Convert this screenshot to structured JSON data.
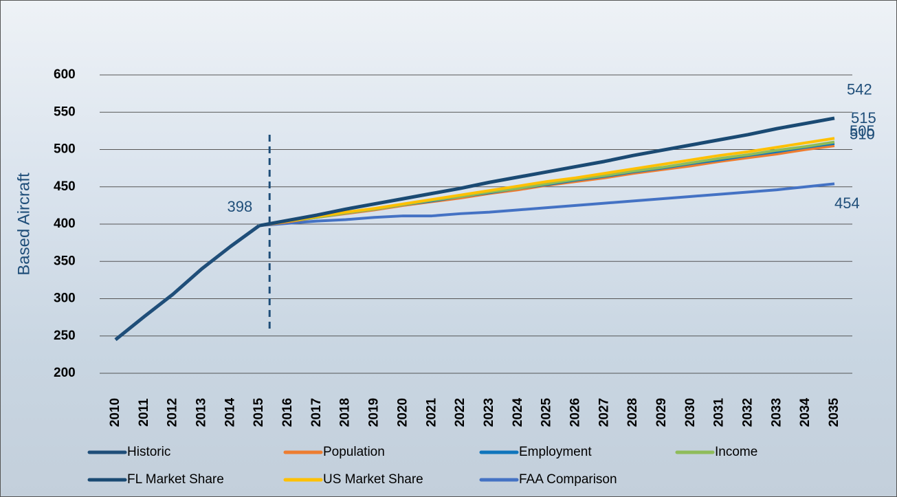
{
  "chart_data": {
    "type": "line",
    "y_axis_label": "Based Aircraft",
    "categories": [
      "2010",
      "2011",
      "2012",
      "2013",
      "2014",
      "2015",
      "2016",
      "2017",
      "2018",
      "2019",
      "2020",
      "2021",
      "2022",
      "2023",
      "2024",
      "2025",
      "2026",
      "2027",
      "2028",
      "2029",
      "2030",
      "2031",
      "2032",
      "2033",
      "2034",
      "2035"
    ],
    "ylim": [
      200,
      600
    ],
    "yticks": [
      200,
      250,
      300,
      350,
      400,
      450,
      500,
      550,
      600
    ],
    "grid": true,
    "legend": "bottom",
    "series": [
      {
        "name": "Historic",
        "color": "#1f4e79",
        "end_label": true,
        "values": [
          245,
          276,
          306,
          340,
          370,
          398,
          null,
          null,
          null,
          null,
          null,
          null,
          null,
          null,
          null,
          null,
          null,
          null,
          null,
          null,
          null,
          null,
          null,
          null,
          null,
          null
        ]
      },
      {
        "name": "Population",
        "color": "#ed7d31",
        "end_label": true,
        "values": [
          null,
          null,
          null,
          null,
          null,
          398,
          403,
          409,
          414,
          419,
          425,
          430,
          435,
          441,
          446,
          452,
          457,
          462,
          468,
          473,
          478,
          484,
          489,
          494,
          500,
          505
        ]
      },
      {
        "name": "Employment",
        "color": "#0f75bc",
        "end_label": false,
        "values": [
          null,
          null,
          null,
          null,
          null,
          398,
          404,
          409,
          415,
          420,
          426,
          431,
          437,
          442,
          448,
          453,
          459,
          464,
          470,
          475,
          481,
          486,
          492,
          497,
          503,
          508
        ]
      },
      {
        "name": "Income",
        "color": "#8fbc5a",
        "end_label": true,
        "values": [
          null,
          null,
          null,
          null,
          null,
          398,
          404,
          409,
          415,
          420,
          426,
          432,
          437,
          443,
          448,
          454,
          460,
          465,
          471,
          476,
          482,
          488,
          493,
          499,
          504,
          510
        ]
      },
      {
        "name": "FL Market Share",
        "color": "#1a4a73",
        "end_label": true,
        "values": [
          null,
          null,
          null,
          null,
          null,
          398,
          405,
          412,
          420,
          427,
          434,
          441,
          448,
          456,
          463,
          470,
          477,
          484,
          492,
          499,
          506,
          513,
          520,
          528,
          535,
          542
        ]
      },
      {
        "name": "US Market Share",
        "color": "#ffc000",
        "end_label": true,
        "values": [
          null,
          null,
          null,
          null,
          null,
          398,
          404,
          410,
          416,
          421,
          427,
          433,
          439,
          445,
          451,
          457,
          462,
          468,
          474,
          480,
          486,
          492,
          497,
          503,
          509,
          515
        ]
      },
      {
        "name": "FAA Comparison",
        "color": "#4472c4",
        "end_label": true,
        "values": [
          null,
          null,
          null,
          null,
          null,
          398,
          401,
          404,
          406,
          409,
          411,
          411,
          414,
          416,
          419,
          422,
          425,
          428,
          431,
          434,
          437,
          440,
          443,
          446,
          450,
          454
        ]
      }
    ]
  }
}
